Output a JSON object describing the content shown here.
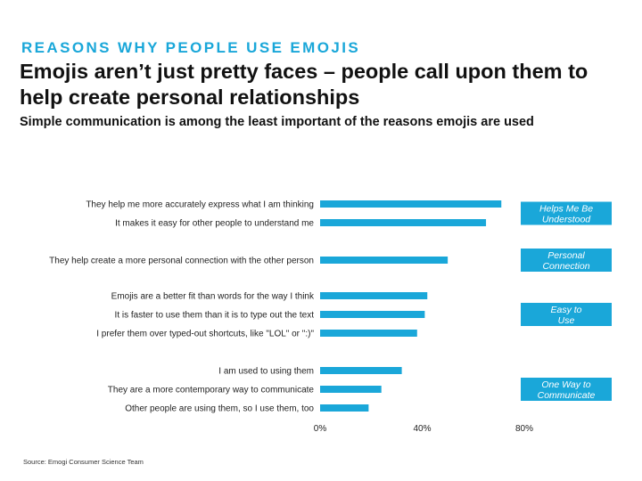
{
  "header": {
    "kicker": "REASONS WHY PEOPLE USE EMOJIS",
    "headline": "Emojis aren’t just pretty faces – people call upon them to help create personal relationships",
    "subhead": "Simple communication is among the least important of the reasons emojis are used"
  },
  "source": "Source: Emogi Consumer Science Team",
  "colors": {
    "bar": "#1aa7d9",
    "kicker": "#1aa7d9",
    "group_box": "#1aa7d9"
  },
  "chart_data": {
    "type": "bar",
    "orientation": "horizontal",
    "categories": [
      "They help me more accurately express what I am thinking",
      "It makes it easy for other people to understand me",
      "They help create a more personal connection with the other person",
      "Emojis are a better fit than words for the way I think",
      "It is faster to use them than it is to type out the text",
      "I prefer them over typed-out shortcuts, like \"LOL\" or \":)\"",
      "I am used to using them",
      "They are a more contemporary way to communicate",
      "Other people are using them, so I use them, too"
    ],
    "values": [
      71,
      65,
      50,
      42,
      41,
      38,
      32,
      24,
      19
    ],
    "groups": [
      {
        "label": "Helps Me Be Understood",
        "members": [
          0,
          1
        ]
      },
      {
        "label": "Personal Connection",
        "members": [
          2
        ]
      },
      {
        "label": "Easy to Use",
        "members": [
          3,
          4,
          5
        ]
      },
      {
        "label": "One Way to Communicate",
        "members": [
          6,
          7,
          8
        ]
      }
    ],
    "xlim": [
      0,
      80
    ],
    "xticks": [
      "0%",
      "40%",
      "80%"
    ],
    "grid": false,
    "legend": "none"
  }
}
